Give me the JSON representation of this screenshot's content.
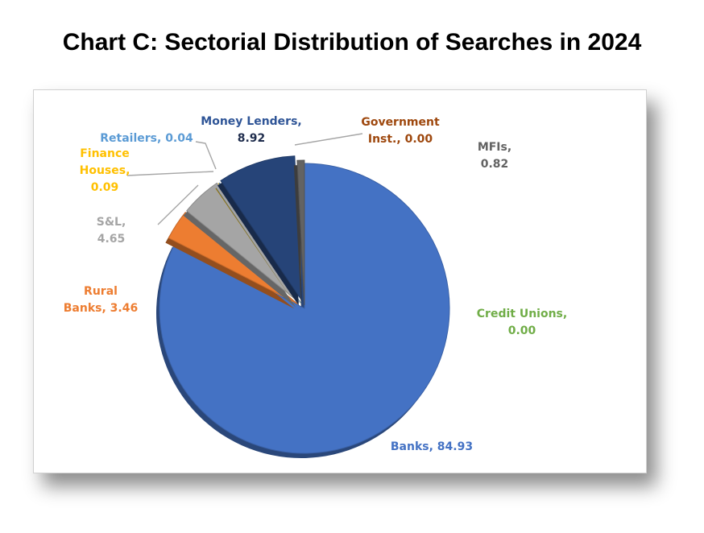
{
  "title": "Chart C: Sectorial Distribution of Searches in 2024",
  "chart_data": {
    "type": "pie",
    "title": "Chart C: Sectorial Distribution of Searches in 2024",
    "categories": [
      "Banks",
      "Rural Banks",
      "S&L",
      "Finance Houses",
      "Retailers",
      "Money Lenders",
      "Government Inst.",
      "MFIs",
      "Credit Unions"
    ],
    "values": [
      84.93,
      3.46,
      4.65,
      0.09,
      0.04,
      8.92,
      0.0,
      0.82,
      0.0
    ],
    "colors": [
      "#4472C4",
      "#ED7D31",
      "#A5A5A5",
      "#FFC000",
      "#5B9BD5",
      "#264478",
      "#9E480E",
      "#636363",
      "#70AD47"
    ],
    "labels": [
      [
        "Banks, 84.93"
      ],
      [
        "Rural",
        "Banks, 3.46"
      ],
      [
        "S&L,",
        "4.65"
      ],
      [
        "Finance",
        "Houses,",
        "0.09"
      ],
      [
        "Retailers, 0.04"
      ],
      [
        "Money Lenders,",
        "8.92"
      ],
      [
        "Government",
        "Inst., 0.00"
      ],
      [
        "MFIs,",
        "0.82"
      ],
      [
        "Credit Unions,",
        "0.00"
      ]
    ],
    "legend": "none"
  }
}
